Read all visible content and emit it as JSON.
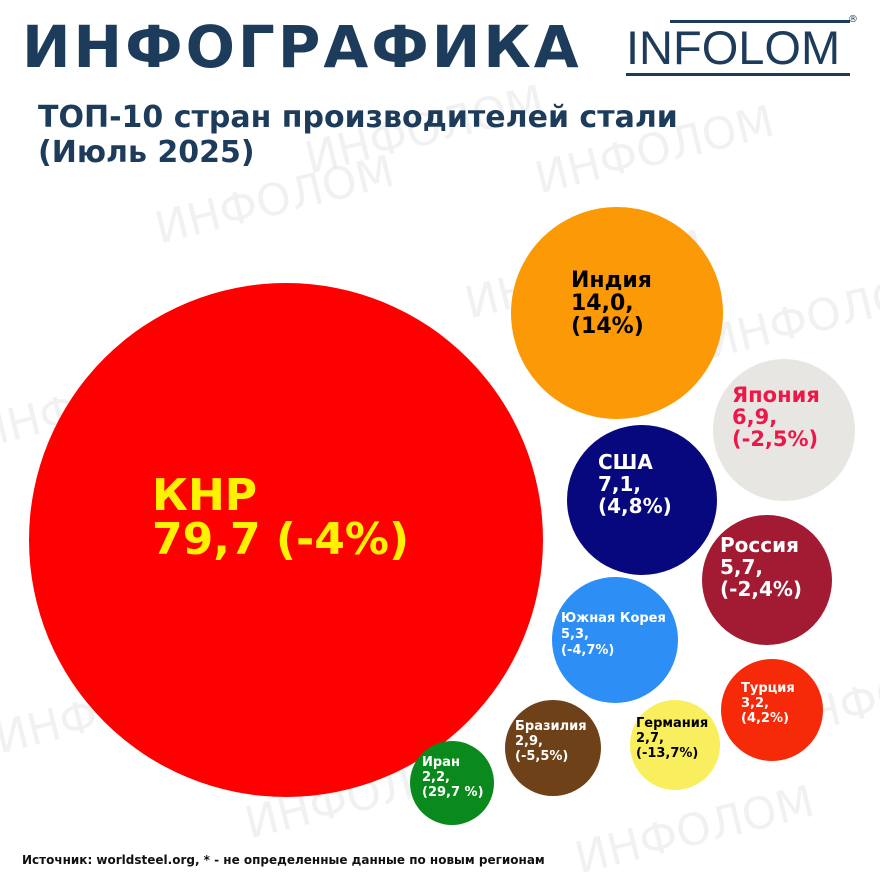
{
  "header": {
    "title": "ИНФОГРАФИКА",
    "logo_text": "INFOLOM",
    "logo_mark": "®",
    "subtitle_line1": "ТОП-10 стран производителей стали",
    "subtitle_line2": "(Июль 2025)"
  },
  "watermark_text": "ИНФОЛОМ",
  "footer": {
    "source": "Источник: worldsteel.org,  * - не определенные данные по новым регионам"
  },
  "colors": {
    "title": "#1d3b5a",
    "watermark": "#c0c0c0"
  },
  "chart_data": {
    "type": "bubble",
    "title": "ТОП-10 стран производителей стали (Июль 2025)",
    "series": [
      {
        "name": "КНР",
        "value": 79.7,
        "change_pct": -4.0,
        "value_label": "79,7",
        "change_label": "(-4%)",
        "fill": "#ff0000",
        "text_color": "#fff200"
      },
      {
        "name": "Индия",
        "value": 14.0,
        "change_pct": 14.0,
        "value_label": "14,0,",
        "change_label": "(14%)",
        "fill": "#fb9a06",
        "text_color": "#000000"
      },
      {
        "name": "Япония",
        "value": 6.9,
        "change_pct": -2.5,
        "value_label": "6,9,",
        "change_label": "(-2,5%)",
        "fill": "#e8e6e2",
        "text_color": "#ee1848"
      },
      {
        "name": "США",
        "value": 7.1,
        "change_pct": 4.8,
        "value_label": "7,1,",
        "change_label": "(4,8%)",
        "fill": "#07077e",
        "text_color": "#ffffff"
      },
      {
        "name": "Россия",
        "value": 5.7,
        "change_pct": -2.4,
        "value_label": "5,7,",
        "change_label": "(-2,4%)",
        "fill": "#a31a33",
        "text_color": "#ffffff"
      },
      {
        "name": "Южная Корея",
        "value": 5.3,
        "change_pct": -4.7,
        "value_label": "5,3,",
        "change_label": "(-4,7%)",
        "fill": "#2d8ff5",
        "text_color": "#ffffff"
      },
      {
        "name": "Турция",
        "value": 3.2,
        "change_pct": 4.2,
        "value_label": "3,2,",
        "change_label": "(4,2%)",
        "fill": "#f62a08",
        "text_color": "#ffffff"
      },
      {
        "name": "Бразилия",
        "value": 2.9,
        "change_pct": -5.5,
        "value_label": "2,9,",
        "change_label": "(-5,5%)",
        "fill": "#6e4118",
        "text_color": "#ffffff"
      },
      {
        "name": "Германия",
        "value": 2.7,
        "change_pct": -13.7,
        "value_label": "2,7,",
        "change_label": "(-13,7%)",
        "fill": "#f8ee5e",
        "text_color": "#000000"
      },
      {
        "name": "Иран",
        "value": 2.2,
        "change_pct": 29.7,
        "value_label": "2,2,",
        "change_label": "(29,7 %)",
        "fill": "#0a8a1c",
        "text_color": "#ffffff"
      }
    ]
  }
}
